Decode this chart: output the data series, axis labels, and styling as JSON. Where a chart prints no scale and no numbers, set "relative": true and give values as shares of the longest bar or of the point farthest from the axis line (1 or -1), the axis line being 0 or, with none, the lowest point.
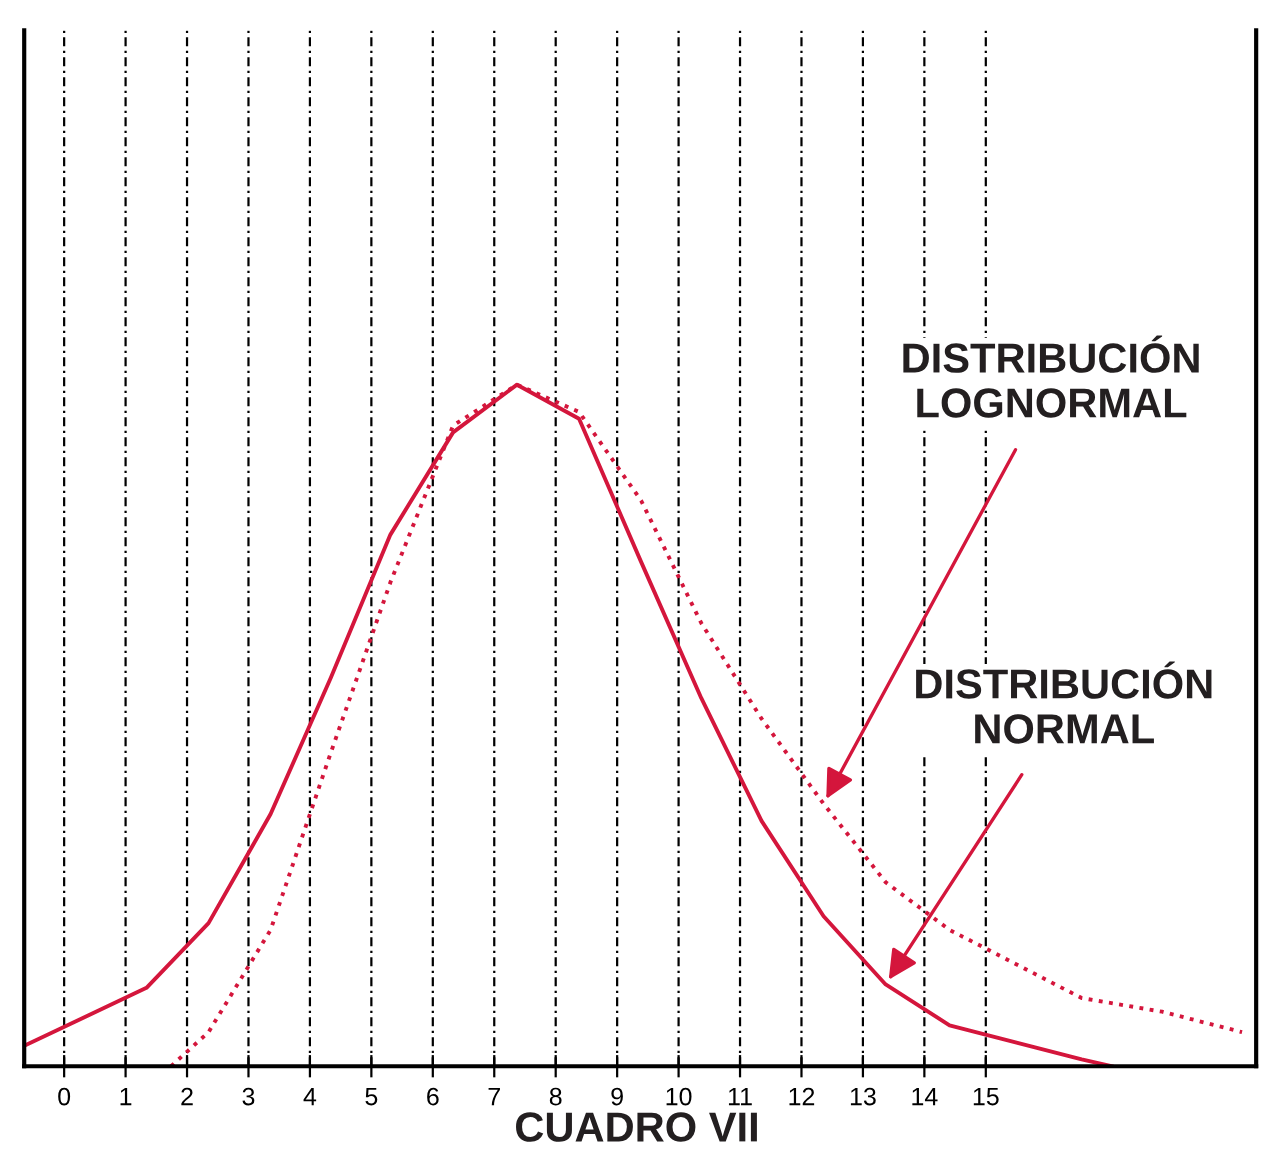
{
  "chart_data": {
    "type": "line",
    "relative": true,
    "xlim": [
      -0.65,
      19.4
    ],
    "xticks": [
      0,
      1,
      2,
      3,
      4,
      5,
      6,
      7,
      8,
      9,
      10,
      11,
      12,
      13,
      14,
      15
    ],
    "grid": "x",
    "tick_labels": "x",
    "series": [
      {
        "color": "#d4163c",
        "line_style": "solid",
        "x": [
          -0.65,
          1.34,
          2.35,
          3.36,
          4.34,
          5.31,
          6.33,
          7.37,
          8.38,
          9.39,
          10.37,
          11.35,
          12.36,
          13.37,
          14.41,
          16.56,
          17.05
        ],
        "values": [
          0.03,
          0.115,
          0.21,
          0.37,
          0.57,
          0.78,
          0.93,
          1,
          0.95,
          0.74,
          0.54,
          0.36,
          0.22,
          0.12,
          0.06,
          0.01,
          0
        ]
      },
      {
        "color": "#d4163c",
        "line_style": "dotted",
        "x": [
          1.74,
          2.35,
          3.36,
          4.34,
          5.31,
          6.33,
          7.37,
          8.38,
          9.39,
          10.37,
          11.35,
          12.36,
          13.37,
          14.41,
          15.36,
          16.56,
          17.87,
          19.17
        ],
        "values": [
          0,
          0.05,
          0.2,
          0.46,
          0.71,
          0.94,
          1,
          0.96,
          0.83,
          0.65,
          0.51,
          0.385,
          0.27,
          0.2,
          0.156,
          0.1,
          0.08,
          0.05
        ]
      }
    ],
    "annotations": [
      "DISTRIBUCIÓN\nLOGNORMAL",
      "DISTRIBUCIÓN\nNORMAL",
      "CUADRO VII"
    ]
  }
}
